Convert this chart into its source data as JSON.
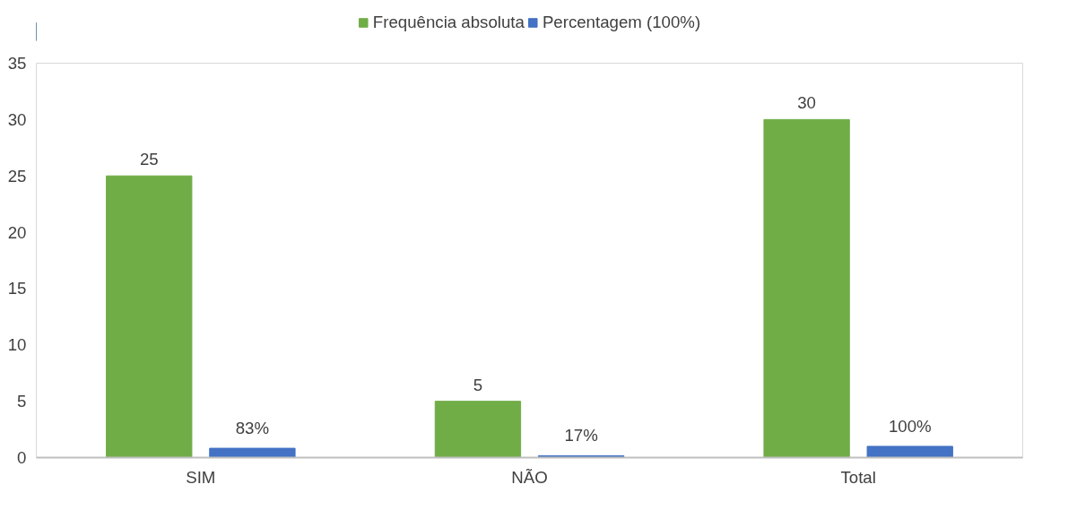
{
  "chart_data": {
    "type": "bar",
    "categories": [
      "SIM",
      "NÃO",
      "Total"
    ],
    "series": [
      {
        "name": "Frequência absoluta",
        "color": "#70ad47",
        "values": [
          25,
          5,
          30
        ],
        "value_labels": [
          "25",
          "5",
          "30"
        ]
      },
      {
        "name": "Percentagem (100%)",
        "color": "#4472c4",
        "values": [
          0.83,
          0.17,
          1
        ],
        "value_labels": [
          "83%",
          "17%",
          "100%"
        ]
      }
    ],
    "ylim": [
      0,
      35
    ],
    "yticks": [
      0,
      5,
      10,
      15,
      20,
      25,
      30,
      35
    ],
    "grid": false,
    "legend": "top"
  }
}
